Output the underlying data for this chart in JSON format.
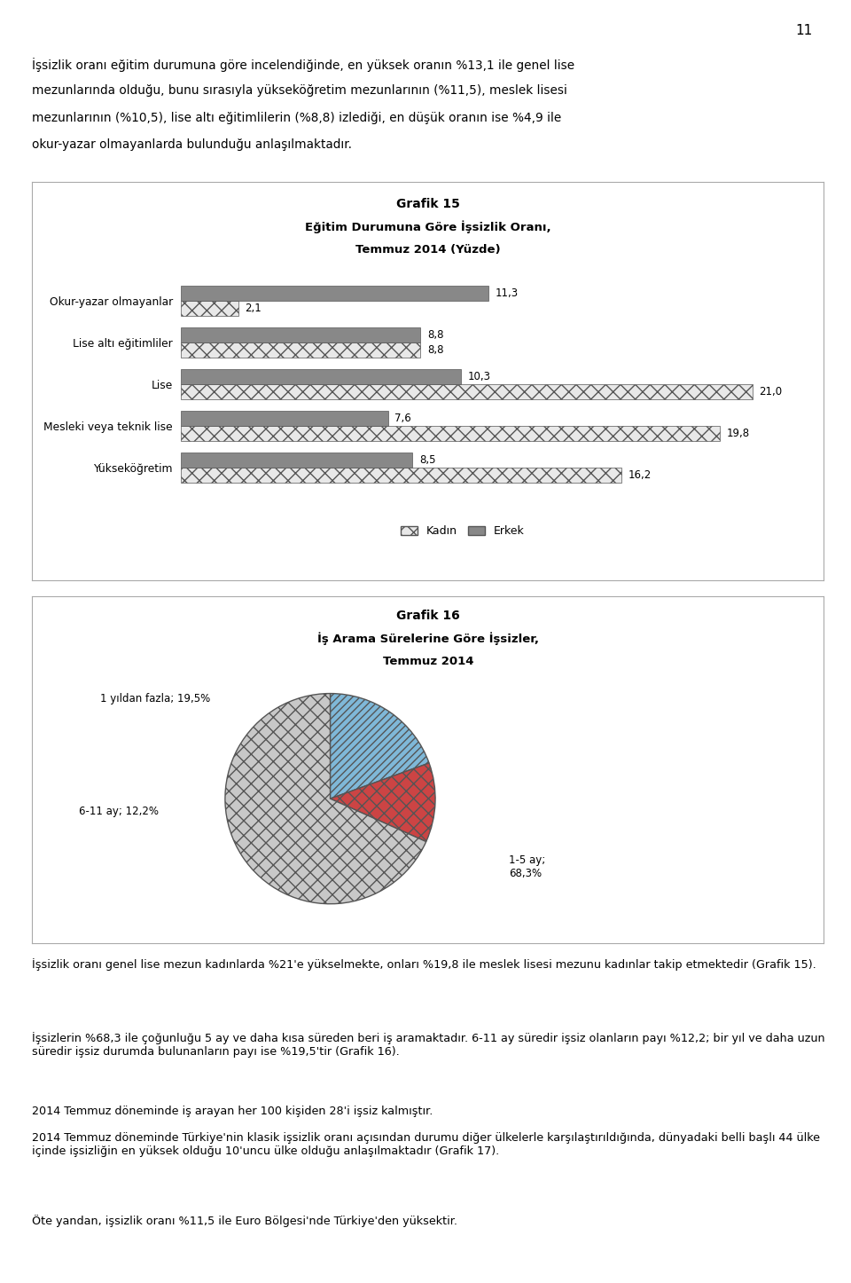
{
  "page_number": "11",
  "intro_text_lines": [
    "İşsizlik oranı eğitim durumuna göre incelendiğinde, en yüksek oranın %13,1 ile genel lise",
    "mezunlarında olduğu, bunu sırasıyla yükseköğretim mezunlarının (%11,5), meslek lisesi",
    "mezunlarının (%10,5), lise altı eğitimlilerin (%8,8) izlediği, en düşük oranın ise %4,9 ile",
    "okur-yazar olmayanlarda bulunduğu anlaşılmaktadır."
  ],
  "bar_title_line1": "Grafik 15",
  "bar_title_line2": "Eğitim Durumuna Göre İşsizlik Oranı,",
  "bar_title_line3": "Temmuz 2014 (Yüzde)",
  "categories": [
    "Okur-yazar olmayanlar",
    "Lise altı eğitimliler",
    "Lise",
    "Mesleki veya teknik lise",
    "Yükseköğretim"
  ],
  "kadin_values": [
    2.1,
    8.8,
    21.0,
    19.8,
    16.2
  ],
  "erkek_values": [
    11.3,
    8.8,
    10.3,
    7.6,
    8.5
  ],
  "kadin_label": "Kadın",
  "erkek_label": "Erkek",
  "xlim": [
    0,
    23
  ],
  "pie_title_line1": "Grafik 16",
  "pie_title_line2": "İş Arama Sürelerine Göre İşsizler,",
  "pie_title_line3": "Temmuz 2014",
  "pie_label_1": "1 yıldan fazla; 19,5%",
  "pie_label_2": "6-11 ay; 12,2%",
  "pie_label_3": "1-5 ay;\n68,3%",
  "pie_values": [
    19.5,
    12.2,
    68.3
  ],
  "bottom_texts": [
    {
      "text": "İşsizlik oranı genel lise mezun kadınlarda %21'e yükselmekte, onları %19,8 ile meslek lisesi mezunu kadınlar takip etmektedir ",
      "bold_suffix": "(Grafik 15)."
    },
    {
      "text": "İşsizlerin %68,3 ile çoğunluğu 5 ay ve daha kısa süreden beri iş aramaktadır. 6-11 ay süredir işsiz olanların payı %12,2; bir yıl ve daha uzun süredir işsiz durumda bulunanların payı ise %19,5'tir ",
      "bold_suffix": "(Grafik 16)."
    },
    {
      "text": "2014 Temmuz döneminde iş arayan her 100 kişiden 28'i işsiz kalmıştır.",
      "bold_suffix": ""
    },
    {
      "text": "2014 Temmuz döneminde Türkiye'nin klasik işsizlik oranı açısından durumu diğer ülkelerle karşılaştırıldığında, dünyadaki belli başlı 44 ülke içinde işsizliğin en yüksek olduğu 10'uncu ülke olduğu anlaşılmaktadır ",
      "bold_suffix": "(Grafik 17)."
    },
    {
      "text": "Öte yandan, işsizlik oranı %11,5 ile Euro Bölgesi'nde Türkiye'den yüksektir.",
      "bold_suffix": ""
    }
  ]
}
